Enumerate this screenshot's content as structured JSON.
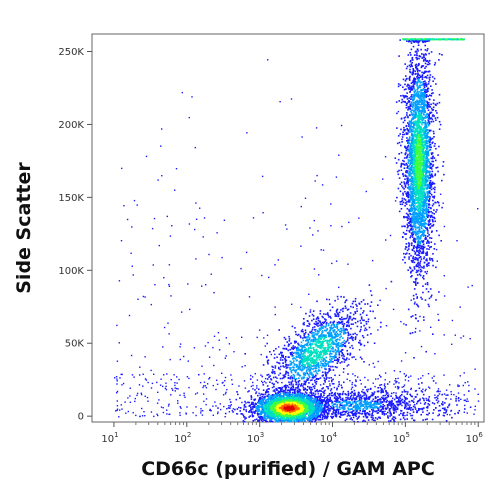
{
  "chart_data": {
    "type": "scatter",
    "title": "",
    "xlabel": "CD66c (purified) / GAM APC",
    "ylabel": "Side Scatter",
    "x_scale": "log",
    "xlim": [
      5,
      1200000
    ],
    "ylim": [
      -4000,
      262000
    ],
    "grid": false,
    "legend": "none",
    "x_ticks": [
      {
        "value": 10,
        "base": "10",
        "exp": "1"
      },
      {
        "value": 100,
        "base": "10",
        "exp": "2"
      },
      {
        "value": 1000,
        "base": "10",
        "exp": "3"
      },
      {
        "value": 10000,
        "base": "10",
        "exp": "4"
      },
      {
        "value": 100000,
        "base": "10",
        "exp": "5"
      },
      {
        "value": 1000000,
        "base": "10",
        "exp": "6"
      }
    ],
    "y_ticks": [
      {
        "value": 0,
        "label": "0"
      },
      {
        "value": 50000,
        "label": "50K"
      },
      {
        "value": 100000,
        "label": "100K"
      },
      {
        "value": 150000,
        "label": "150K"
      },
      {
        "value": 200000,
        "label": "200K"
      },
      {
        "value": 250000,
        "label": "250K"
      }
    ],
    "populations": [
      {
        "id": "lymphocytes",
        "center_x": 2500,
        "center_y": 6000,
        "spread_logx": 0.22,
        "spread_y": 5000,
        "density": "high"
      },
      {
        "id": "monocytes",
        "center_x": 6000,
        "center_y": 45000,
        "spread_logx": 0.3,
        "spread_y": 12000,
        "density": "medium"
      },
      {
        "id": "granulocytes",
        "center_x": 150000,
        "center_y": 175000,
        "spread_logx": 0.1,
        "spread_y": 38000,
        "density": "medium-high"
      },
      {
        "id": "debris",
        "center_x": 20000,
        "center_y": 8000,
        "spread_logx": 0.6,
        "spread_y": 6000,
        "density": "low"
      }
    ],
    "colors": {
      "sparse": "#1a1aff",
      "low": "#00a0ff",
      "mid": "#00e0c0",
      "midhigh": "#40ff40",
      "high": "#ffff00",
      "peak": "#ff6000",
      "max": "#e00000"
    }
  }
}
